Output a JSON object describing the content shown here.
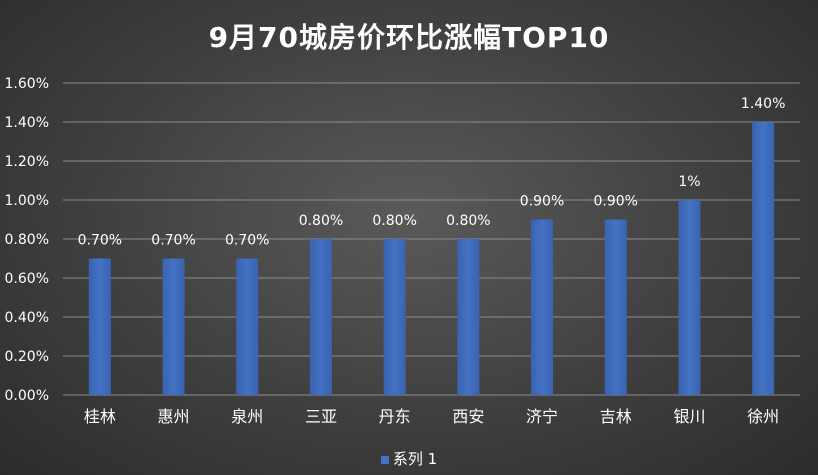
{
  "chart_data": {
    "type": "bar",
    "title": "9月70城房价环比涨幅TOP10",
    "categories": [
      "桂林",
      "惠州",
      "泉州",
      "三亚",
      "丹东",
      "西安",
      "济宁",
      "吉林",
      "银川",
      "徐州"
    ],
    "series": [
      {
        "name": "系列 1",
        "values": [
          0.7,
          0.7,
          0.7,
          0.8,
          0.8,
          0.8,
          0.9,
          0.9,
          1.0,
          1.4
        ],
        "data_labels": [
          "0.70%",
          "0.70%",
          "0.70%",
          "0.80%",
          "0.80%",
          "0.80%",
          "0.90%",
          "0.90%",
          "1%",
          "1.40%"
        ],
        "color": "#4472c4"
      }
    ],
    "ylim": [
      0,
      1.6
    ],
    "yticks": [
      0,
      0.2,
      0.4,
      0.6,
      0.8,
      1.0,
      1.2,
      1.4,
      1.6
    ],
    "ytick_labels": [
      "0.00%",
      "0.20%",
      "0.40%",
      "0.60%",
      "0.80%",
      "1.00%",
      "1.20%",
      "1.40%",
      "1.60%"
    ],
    "grid": true,
    "legend_position": "bottom"
  }
}
